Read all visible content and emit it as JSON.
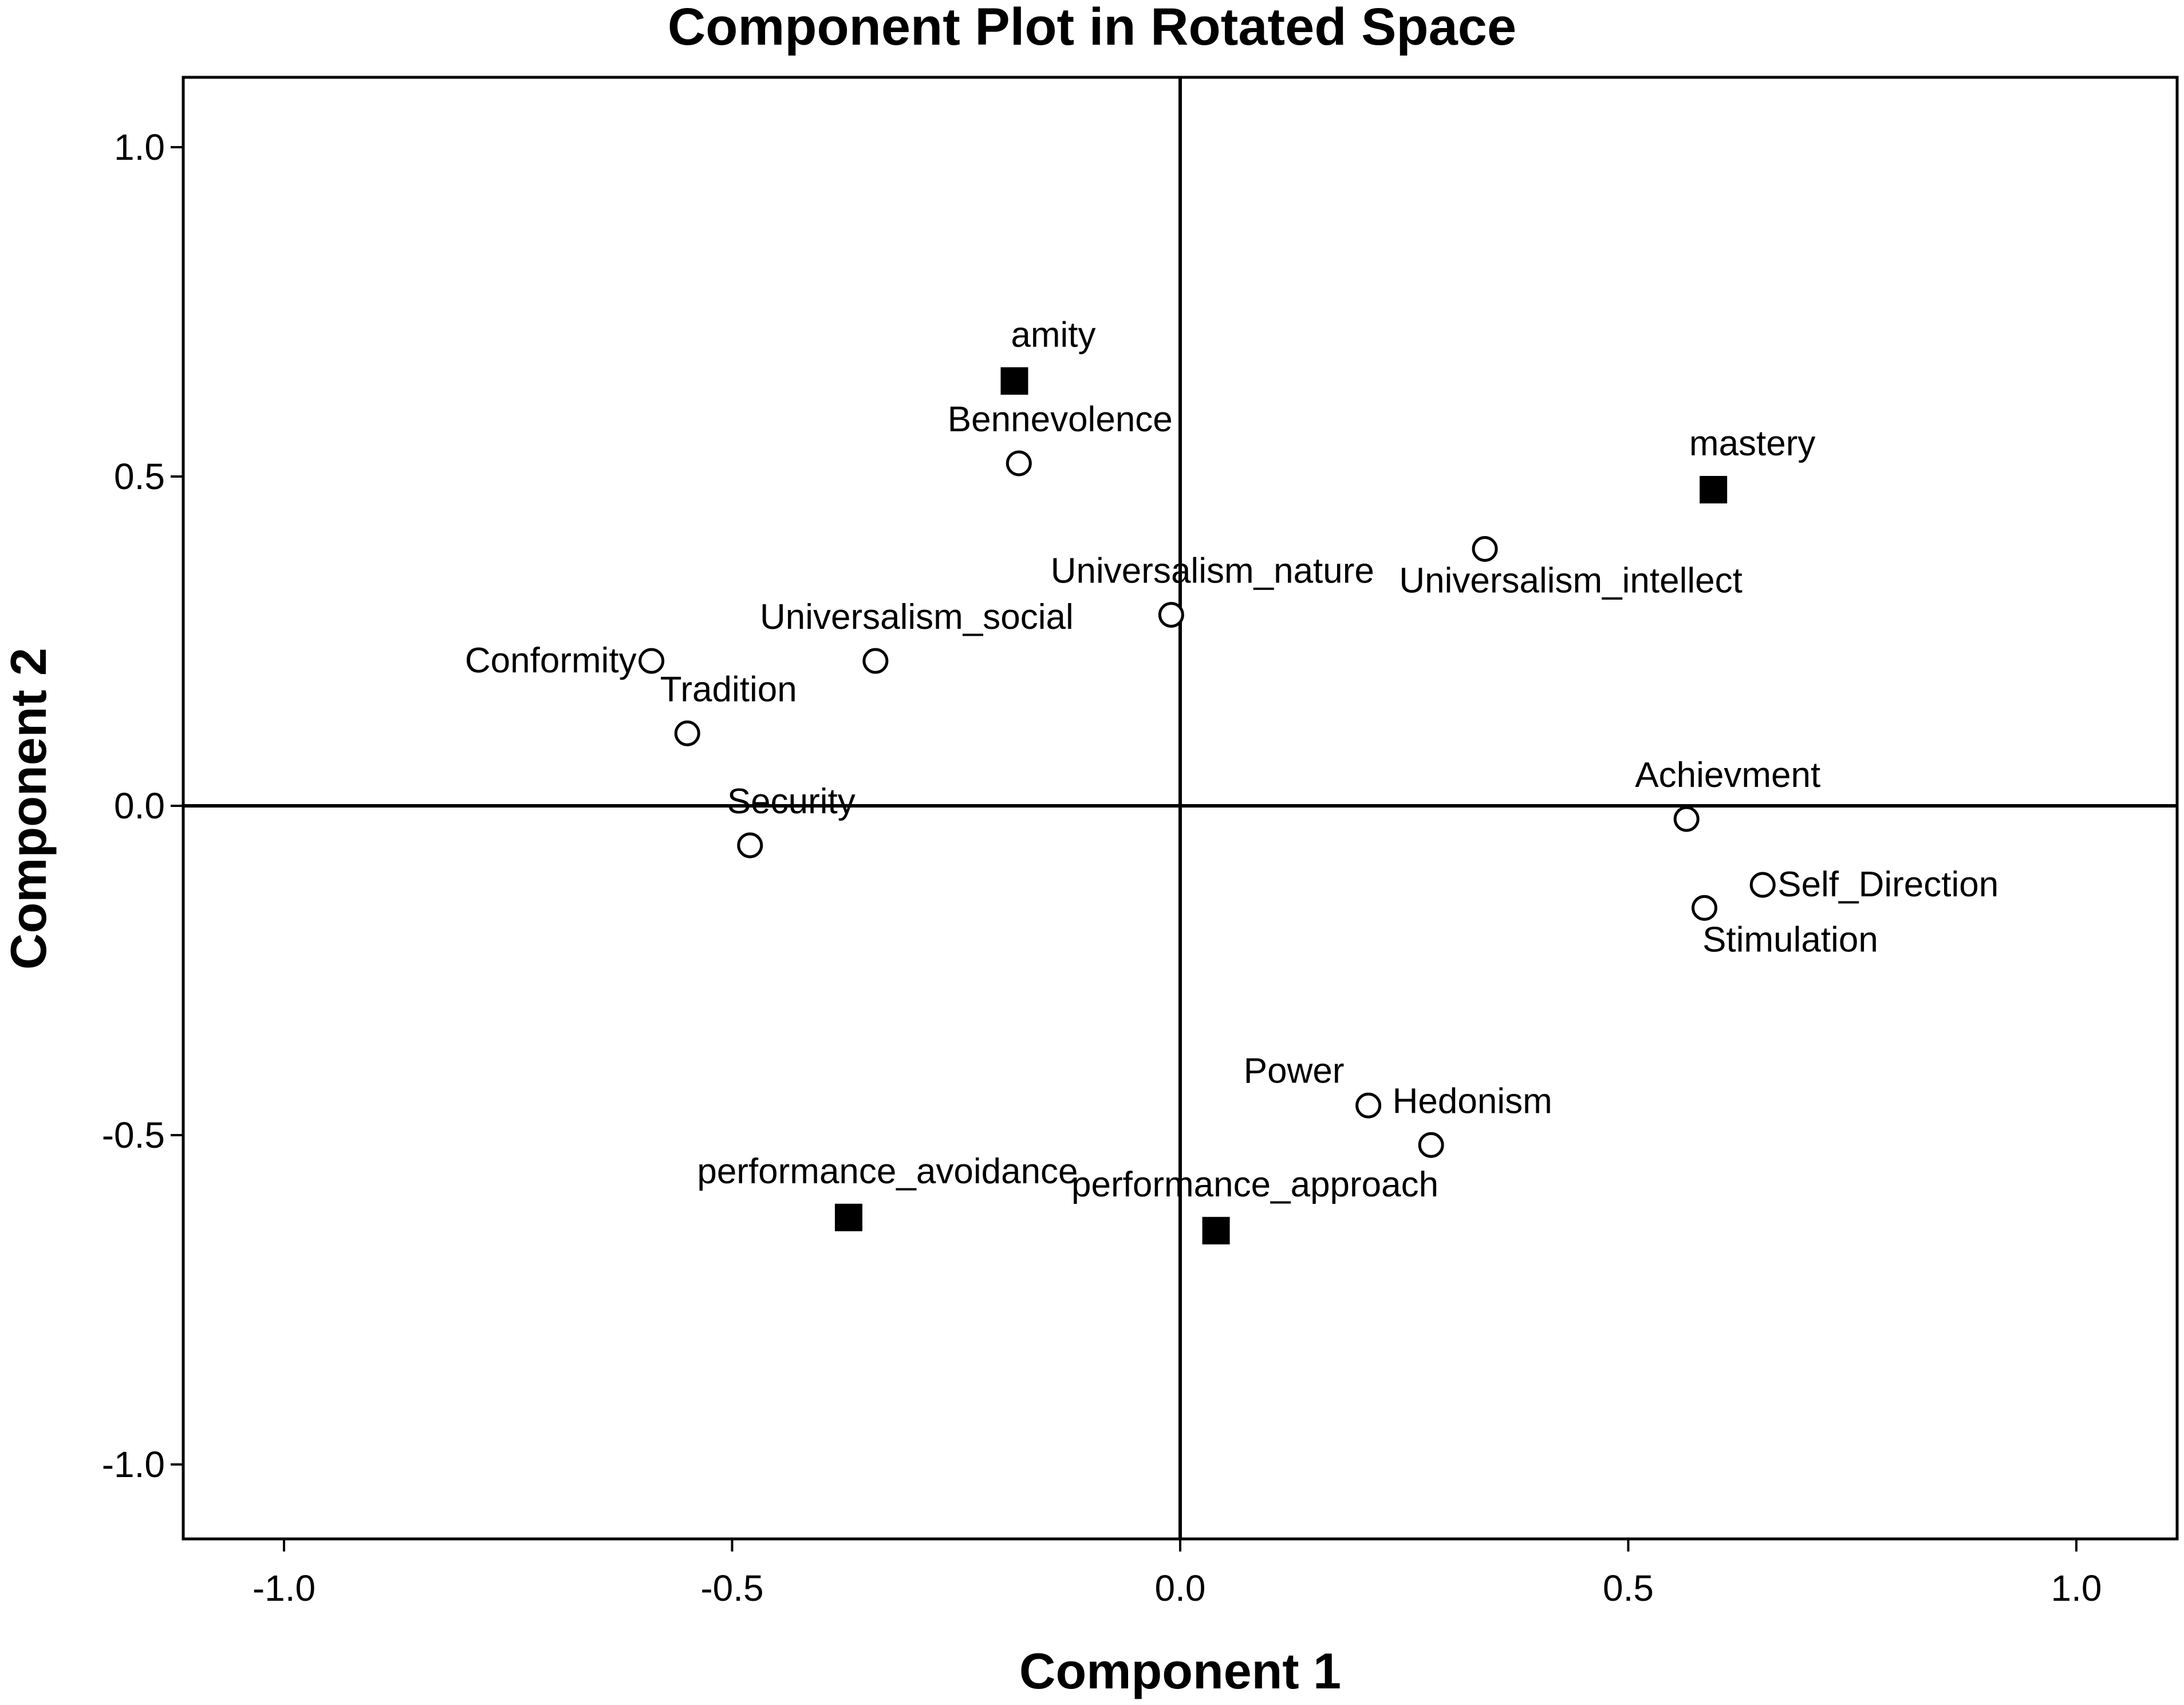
{
  "chart_data": {
    "type": "scatter",
    "title": "Component Plot in Rotated Space",
    "xlabel": "Component 1",
    "ylabel": "Component 2",
    "xlim": [
      -1.1,
      1.1
    ],
    "ylim": [
      -1.1,
      1.1
    ],
    "xticks": [
      -1.0,
      -0.5,
      0.0,
      0.5,
      1.0
    ],
    "yticks": [
      -1.0,
      -0.5,
      0.0,
      0.5,
      1.0
    ],
    "xtick_labels": [
      "-1.0",
      "-0.5",
      "0.0",
      "0.5",
      "1.0"
    ],
    "ytick_labels": [
      "-1.0",
      "-0.5",
      "0.0",
      "0.5",
      "1.0"
    ],
    "reference_lines": {
      "x": 0.0,
      "y": 0.0
    },
    "grid": false,
    "points": [
      {
        "label": "amity",
        "x": -0.185,
        "y": 0.645,
        "marker": "square",
        "label_pos": "above"
      },
      {
        "label": "Bennevolence",
        "x": -0.18,
        "y": 0.52,
        "marker": "circle",
        "label_pos": "above"
      },
      {
        "label": "mastery",
        "x": 0.595,
        "y": 0.48,
        "marker": "square",
        "label_pos": "above"
      },
      {
        "label": "Universalism_intellect",
        "x": 0.34,
        "y": 0.39,
        "marker": "circle",
        "label_pos": "below"
      },
      {
        "label": "Universalism_nature",
        "x": -0.01,
        "y": 0.29,
        "marker": "circle",
        "label_pos": "above"
      },
      {
        "label": "Universalism_social",
        "x": -0.34,
        "y": 0.22,
        "marker": "circle",
        "label_pos": "above"
      },
      {
        "label": "Conformity",
        "x": -0.59,
        "y": 0.22,
        "marker": "circle",
        "label_pos": "left"
      },
      {
        "label": "Tradition",
        "x": -0.55,
        "y": 0.11,
        "marker": "circle",
        "label_pos": "above"
      },
      {
        "label": "Security",
        "x": -0.48,
        "y": -0.06,
        "marker": "circle",
        "label_pos": "above"
      },
      {
        "label": "Achievment",
        "x": 0.565,
        "y": -0.02,
        "marker": "circle",
        "label_pos": "above"
      },
      {
        "label": "Self_Direction",
        "x": 0.65,
        "y": -0.12,
        "marker": "circle",
        "label_pos": "right"
      },
      {
        "label": "Stimulation",
        "x": 0.585,
        "y": -0.155,
        "marker": "circle",
        "label_pos": "below"
      },
      {
        "label": "Power",
        "x": 0.21,
        "y": -0.455,
        "marker": "circle",
        "label_pos": "above-left"
      },
      {
        "label": "Hedonism",
        "x": 0.28,
        "y": -0.515,
        "marker": "circle",
        "label_pos": "above"
      },
      {
        "label": "performance_avoidance",
        "x": -0.37,
        "y": -0.625,
        "marker": "square",
        "label_pos": "above"
      },
      {
        "label": "performance_approach",
        "x": 0.04,
        "y": -0.645,
        "marker": "square",
        "label_pos": "above"
      }
    ]
  }
}
